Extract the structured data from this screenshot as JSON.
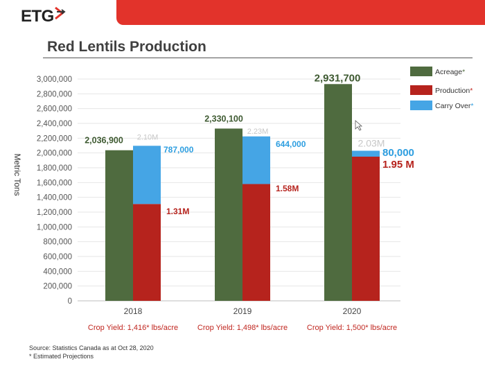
{
  "header": {
    "logo_text": "ETG",
    "accent_color": "#e2332b"
  },
  "slide_title": "Red Lentils Production",
  "chart_data": {
    "type": "bar",
    "title": "",
    "ylabel": "Metric Tons",
    "xlabel": "",
    "ylim": [
      0,
      3000000
    ],
    "y_tick_step": 200000,
    "categories": [
      "2018",
      "2019",
      "2020"
    ],
    "series": [
      {
        "name": "Acreage",
        "legend_star": true,
        "color": "#4f6b3f",
        "star_color": "#4f6b3f",
        "values": [
          2036900,
          2330100,
          2931700
        ]
      },
      {
        "name": "Production",
        "legend_star": true,
        "color": "#b6231d",
        "star_color": "#c0261f",
        "values": [
          1310000,
          1580000,
          1950000
        ]
      },
      {
        "name": "Carry Over",
        "legend_star": true,
        "color": "#45a5e5",
        "star_color": "#2d9ee0",
        "values": [
          787000,
          644000,
          80000
        ],
        "stacked_on": "Production"
      }
    ],
    "data_labels": {
      "acreage": [
        "2,036,900",
        "2,330,100",
        "2,931,700"
      ],
      "production": [
        "1.31M",
        "1.58M",
        "1.95 M"
      ],
      "carry_over": [
        "787,000",
        "644,000",
        "80,000"
      ],
      "total": [
        "2.10M",
        "2.23M",
        "2.03M"
      ]
    },
    "crop_yields": [
      "Crop Yield: 1,416* lbs/acre",
      "Crop Yield: 1,498* lbs/acre",
      "Crop Yield: 1,500* lbs/acre"
    ],
    "grid": true,
    "legend_position": "top-right"
  },
  "footer": {
    "source": "Source: Statistics Canada  as at Oct 28, 2020",
    "note": "* Estimated Projections"
  }
}
